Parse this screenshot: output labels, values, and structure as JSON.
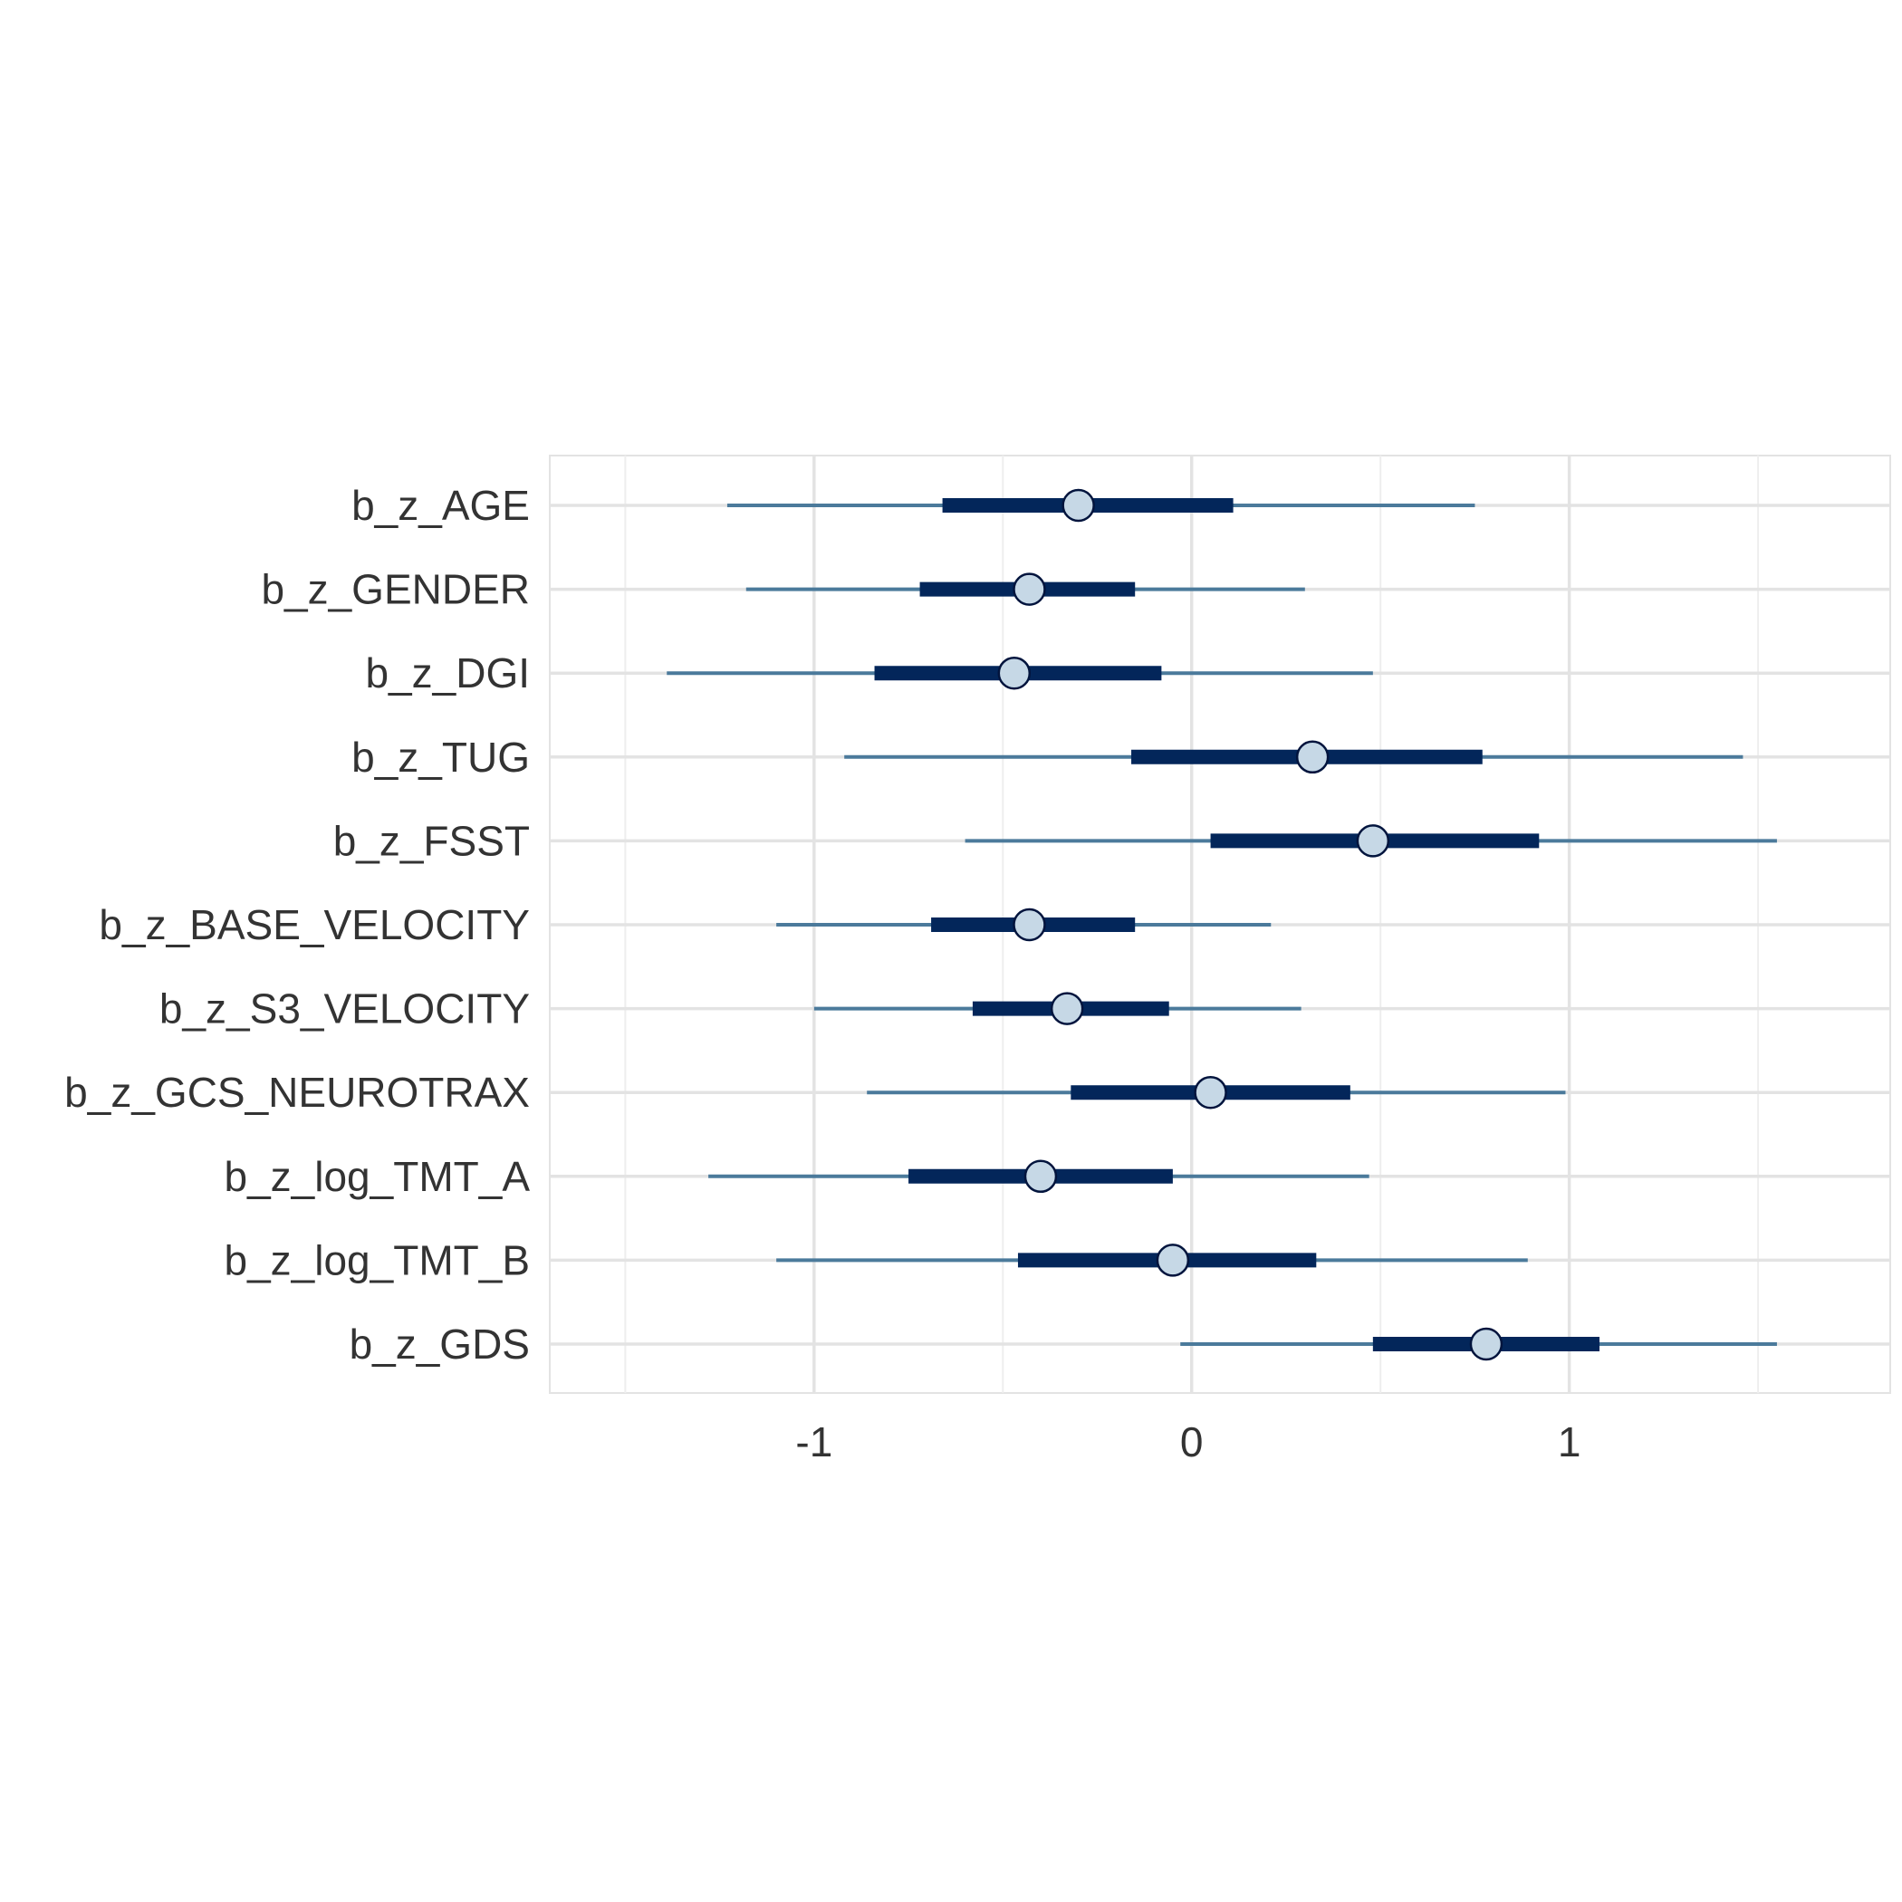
{
  "chart_data": {
    "type": "interval-plot",
    "title": "",
    "xlabel": "",
    "ylabel": "",
    "xlim": [
      -1.7,
      1.85
    ],
    "x_ticks": [
      -1,
      0,
      1
    ],
    "x_tick_labels": [
      "-1",
      "0",
      "1"
    ],
    "grid": true,
    "colors": {
      "outer_interval": "#4b7a9b",
      "inner_interval": "#03265a",
      "point_fill": "#c6d8e6",
      "point_stroke": "#02143d",
      "grid": "#e3e3e3",
      "text": "#333333"
    },
    "parameters": [
      {
        "label": "b_z_AGE",
        "estimate": -0.3,
        "inner": [
          -0.66,
          0.11
        ],
        "outer": [
          -1.23,
          0.75
        ]
      },
      {
        "label": "b_z_GENDER",
        "estimate": -0.43,
        "inner": [
          -0.72,
          -0.15
        ],
        "outer": [
          -1.18,
          0.3
        ]
      },
      {
        "label": "b_z_DGI",
        "estimate": -0.47,
        "inner": [
          -0.84,
          -0.08
        ],
        "outer": [
          -1.39,
          0.48
        ]
      },
      {
        "label": "b_z_TUG",
        "estimate": 0.32,
        "inner": [
          -0.16,
          0.77
        ],
        "outer": [
          -0.92,
          1.46
        ]
      },
      {
        "label": "b_z_FSST",
        "estimate": 0.48,
        "inner": [
          0.05,
          0.92
        ],
        "outer": [
          -0.6,
          1.55
        ]
      },
      {
        "label": "b_z_BASE_VELOCITY",
        "estimate": -0.43,
        "inner": [
          -0.69,
          -0.15
        ],
        "outer": [
          -1.1,
          0.21
        ]
      },
      {
        "label": "b_z_S3_VELOCITY",
        "estimate": -0.33,
        "inner": [
          -0.58,
          -0.06
        ],
        "outer": [
          -1.0,
          0.29
        ]
      },
      {
        "label": "b_z_GCS_NEUROTRAX",
        "estimate": 0.05,
        "inner": [
          -0.32,
          0.42
        ],
        "outer": [
          -0.86,
          0.99
        ]
      },
      {
        "label": "b_z_log_TMT_A",
        "estimate": -0.4,
        "inner": [
          -0.75,
          -0.05
        ],
        "outer": [
          -1.28,
          0.47
        ]
      },
      {
        "label": "b_z_log_TMT_B",
        "estimate": -0.05,
        "inner": [
          -0.46,
          0.33
        ],
        "outer": [
          -1.1,
          0.89
        ]
      },
      {
        "label": "b_z_GDS",
        "estimate": 0.78,
        "inner": [
          0.48,
          1.08
        ],
        "outer": [
          -0.03,
          1.55
        ]
      }
    ]
  }
}
